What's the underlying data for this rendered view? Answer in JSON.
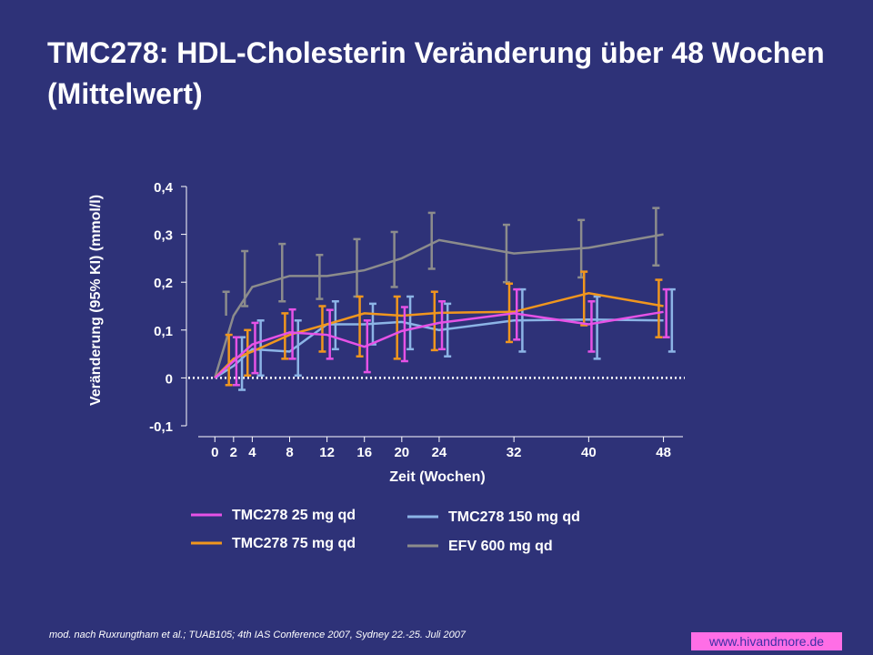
{
  "title": "TMC278: HDL-Cholesterin Veränderung über 48 Wochen (Mittelwert)",
  "footnote": "mod. nach Ruxrungtham  et al.; TUAB105; 4th IAS Conference 2007, Sydney 22.-25. Juli 2007",
  "website": "www.hivandmore.de",
  "colors": {
    "background": "#2e3278",
    "tmc25": "#e652e6",
    "tmc75": "#f0961e",
    "tmc150": "#8cb4e6",
    "efv": "#8c8c8c"
  },
  "chart_data": {
    "type": "line",
    "xlabel": "Zeit (Wochen)",
    "ylabel": "Veränderung (95%  KI) (mmol/l)",
    "x_ticks": [
      0,
      2,
      4,
      8,
      12,
      16,
      20,
      24,
      32,
      40,
      48
    ],
    "y_ticks": [
      -0.1,
      0,
      0.1,
      0.2,
      0.3,
      0.4
    ],
    "y_tick_labels": [
      "-0,1",
      "0",
      "0,1",
      "0,2",
      "0,3",
      "0,4"
    ],
    "xlim": [
      -1,
      49.5
    ],
    "ylim": [
      -0.1,
      0.4
    ],
    "reference_line": 0,
    "grid": false,
    "legend_position": "bottom",
    "series": [
      {
        "name": "TMC278 25 mg qd",
        "color": "#e652e6",
        "x": [
          0,
          2,
          4,
          8,
          12,
          16,
          20,
          24,
          32,
          40,
          48
        ],
        "y": [
          0,
          0.035,
          0.07,
          0.095,
          0.09,
          0.065,
          0.098,
          0.115,
          0.135,
          0.112,
          0.138
        ],
        "err_low": [
          null,
          -0.015,
          0.01,
          0.04,
          0.04,
          0.012,
          0.035,
          0.06,
          0.08,
          0.055,
          0.085
        ],
        "err_high": [
          null,
          0.085,
          0.115,
          0.143,
          0.142,
          0.12,
          0.148,
          0.16,
          0.185,
          0.16,
          0.185
        ]
      },
      {
        "name": "TMC278 75 mg qd",
        "color": "#f0961e",
        "x": [
          0,
          2,
          4,
          8,
          12,
          16,
          20,
          24,
          32,
          40,
          48
        ],
        "y": [
          0,
          0.04,
          0.055,
          0.09,
          0.112,
          0.135,
          0.13,
          0.136,
          0.138,
          0.177,
          0.15
        ],
        "err_low": [
          null,
          -0.015,
          0.005,
          0.04,
          0.055,
          0.045,
          0.04,
          0.058,
          0.075,
          0.11,
          0.085
        ],
        "err_high": [
          null,
          0.09,
          0.1,
          0.135,
          0.15,
          0.17,
          0.17,
          0.18,
          0.197,
          0.222,
          0.205
        ]
      },
      {
        "name": "TMC278 150 mg qd",
        "color": "#8cb4e6",
        "x": [
          0,
          2,
          4,
          8,
          12,
          16,
          20,
          24,
          32,
          40,
          48
        ],
        "y": [
          0,
          0.025,
          0.06,
          0.055,
          0.112,
          0.112,
          0.117,
          0.1,
          0.12,
          0.122,
          0.12
        ],
        "err_low": [
          null,
          -0.025,
          0.005,
          0.005,
          0.06,
          0.07,
          0.06,
          0.045,
          0.055,
          0.04,
          0.055
        ],
        "err_high": [
          null,
          0.085,
          0.12,
          0.12,
          0.16,
          0.155,
          0.17,
          0.155,
          0.185,
          0.17,
          0.185
        ]
      },
      {
        "name": "EFV 600 mg qd",
        "color": "#8c8c8c",
        "x": [
          0,
          2,
          4,
          8,
          12,
          16,
          20,
          24,
          32,
          40,
          48
        ],
        "y": [
          0,
          0.13,
          0.19,
          0.213,
          0.213,
          0.225,
          0.25,
          0.288,
          0.26,
          0.272,
          0.3
        ],
        "err_low": [
          null,
          null,
          0.15,
          0.16,
          0.165,
          0.17,
          0.19,
          0.228,
          0.2,
          0.21,
          0.235
        ],
        "err_high": [
          null,
          0.18,
          0.265,
          0.28,
          0.257,
          0.29,
          0.305,
          0.345,
          0.32,
          0.33,
          0.355
        ]
      }
    ]
  }
}
